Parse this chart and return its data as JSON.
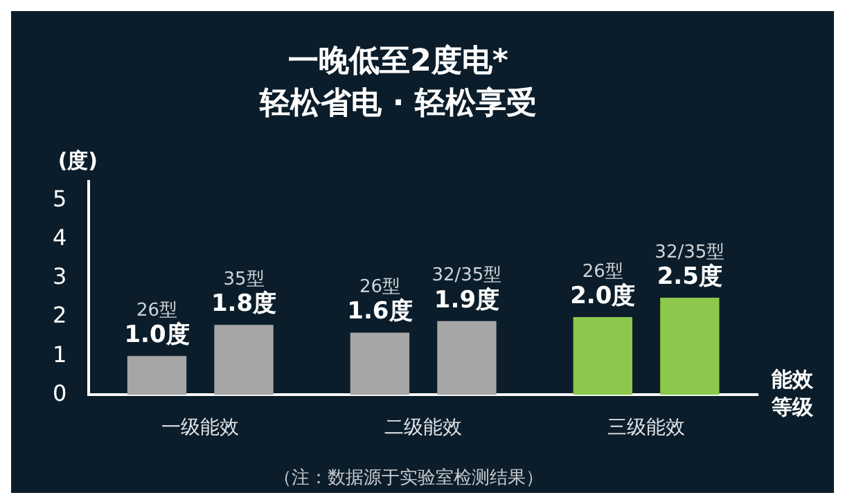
{
  "chart_data": {
    "type": "bar",
    "title": "一晚低至2度电*",
    "subtitle": "轻松省电 · 轻松享受",
    "ylabel": "(度)",
    "xlabel": "能效等级",
    "categories": [
      "一级能效",
      "二级能效",
      "三级能效"
    ],
    "series": [
      {
        "colors": [
          "#a6a6a6",
          "#a6a6a6",
          "#8cc84b"
        ],
        "values": [
          1.0,
          1.6,
          2.0
        ],
        "value_labels": [
          "1.0度",
          "1.6度",
          "2.0度"
        ]
      },
      {
        "colors": [
          "#a6a6a6",
          "#a6a6a6",
          "#8cc84b"
        ],
        "values": [
          1.8,
          1.9,
          2.5
        ],
        "value_labels": [
          "1.8度",
          "1.9度",
          "2.5度"
        ]
      }
    ],
    "ylim": [
      0,
      5.5
    ],
    "yticks": [
      0,
      1,
      2,
      3,
      4,
      5
    ],
    "grid": false,
    "legend": false,
    "annotations": [
      "26型",
      "35型",
      "26型",
      "32/35型",
      "26型",
      "32/35型",
      "（注：数据源于实验室检测结果）"
    ]
  }
}
